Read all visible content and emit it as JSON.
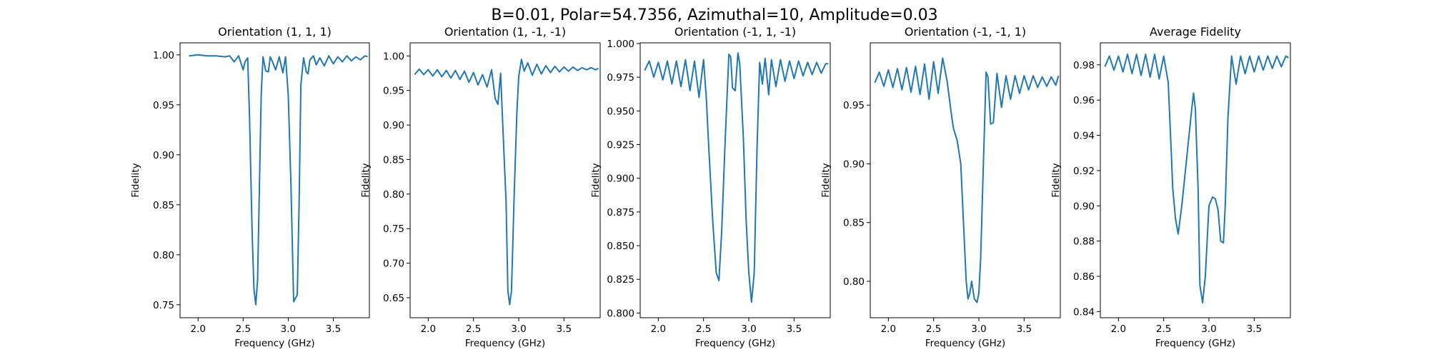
{
  "figure": {
    "title": "B=0.01, Polar=54.7356, Azimuthal=10, Amplitude=0.03"
  },
  "chart_data": [
    {
      "type": "line",
      "title": "Orientation (1, 1, 1)",
      "xlabel": "Frequency (GHz)",
      "ylabel": "Fidelity",
      "xlim": [
        1.8,
        3.9
      ],
      "ylim": [
        0.737,
        1.012
      ],
      "xticks": [
        "2.0",
        "2.5",
        "3.0",
        "3.5"
      ],
      "yticks": [
        "0.75",
        "0.80",
        "0.85",
        "0.90",
        "0.95",
        "1.00"
      ],
      "grid": false,
      "color": "#1f77b4",
      "series": [
        {
          "x": [
            1.9,
            2.0,
            2.1,
            2.2,
            2.3,
            2.35,
            2.4,
            2.45,
            2.5,
            2.52,
            2.55,
            2.57,
            2.6,
            2.62,
            2.64,
            2.66,
            2.7,
            2.72,
            2.75,
            2.78,
            2.8,
            2.83,
            2.86,
            2.9,
            2.94,
            2.97,
            3.0,
            3.03,
            3.06,
            3.1,
            3.12,
            3.14,
            3.17,
            3.2,
            3.22,
            3.24,
            3.28,
            3.31,
            3.35,
            3.4,
            3.45,
            3.5,
            3.55,
            3.6,
            3.65,
            3.7,
            3.75,
            3.8,
            3.85,
            3.88
          ],
          "y": [
            0.999,
            1.0,
            0.999,
            0.999,
            0.998,
            0.999,
            0.993,
            0.999,
            0.985,
            0.993,
            0.997,
            0.94,
            0.82,
            0.765,
            0.75,
            0.775,
            0.96,
            0.998,
            0.984,
            0.983,
            0.998,
            0.992,
            0.985,
            0.998,
            0.982,
            0.998,
            0.96,
            0.87,
            0.753,
            0.76,
            0.85,
            0.97,
            0.997,
            0.983,
            0.981,
            0.995,
            0.999,
            0.99,
            0.997,
            0.989,
            0.999,
            0.991,
            0.998,
            0.993,
            0.999,
            0.994,
            0.998,
            0.995,
            0.999,
            0.998
          ]
        }
      ]
    },
    {
      "type": "line",
      "title": "Orientation (1, -1, -1)",
      "xlabel": "Frequency (GHz)",
      "ylabel": "Fidelity",
      "xlim": [
        1.8,
        3.9
      ],
      "ylim": [
        0.621,
        1.019
      ],
      "xticks": [
        "2.0",
        "2.5",
        "3.0",
        "3.5"
      ],
      "yticks": [
        "0.65",
        "0.70",
        "0.75",
        "0.80",
        "0.85",
        "0.90",
        "0.95",
        "1.00"
      ],
      "grid": false,
      "color": "#1f77b4",
      "series": [
        {
          "x": [
            1.85,
            1.9,
            1.95,
            2.0,
            2.05,
            2.1,
            2.15,
            2.2,
            2.25,
            2.3,
            2.35,
            2.4,
            2.45,
            2.5,
            2.55,
            2.6,
            2.65,
            2.7,
            2.74,
            2.77,
            2.8,
            2.83,
            2.86,
            2.88,
            2.9,
            2.92,
            2.95,
            2.98,
            3.0,
            3.03,
            3.06,
            3.1,
            3.15,
            3.2,
            3.25,
            3.3,
            3.35,
            3.4,
            3.45,
            3.5,
            3.55,
            3.6,
            3.65,
            3.7,
            3.75,
            3.8,
            3.85,
            3.88
          ],
          "y": [
            0.973,
            0.981,
            0.973,
            0.98,
            0.971,
            0.98,
            0.97,
            0.979,
            0.968,
            0.979,
            0.966,
            0.978,
            0.962,
            0.976,
            0.958,
            0.973,
            0.955,
            0.98,
            0.938,
            0.93,
            0.975,
            0.88,
            0.79,
            0.66,
            0.64,
            0.66,
            0.8,
            0.92,
            0.97,
            0.995,
            0.978,
            0.99,
            0.972,
            0.988,
            0.974,
            0.986,
            0.976,
            0.985,
            0.977,
            0.984,
            0.978,
            0.984,
            0.979,
            0.983,
            0.98,
            0.983,
            0.98,
            0.982
          ]
        }
      ]
    },
    {
      "type": "line",
      "title": "Orientation (-1, 1, -1)",
      "xlabel": "Frequency (GHz)",
      "ylabel": "Fidelity",
      "xlim": [
        1.8,
        3.9
      ],
      "ylim": [
        0.7965,
        1.0005
      ],
      "xticks": [
        "2.0",
        "2.5",
        "3.0",
        "3.5"
      ],
      "yticks": [
        "0.800",
        "0.825",
        "0.850",
        "0.875",
        "0.900",
        "0.925",
        "0.950",
        "0.975",
        "1.000"
      ],
      "grid": false,
      "color": "#1f77b4",
      "series": [
        {
          "x": [
            1.85,
            1.9,
            1.95,
            2.0,
            2.05,
            2.1,
            2.15,
            2.2,
            2.25,
            2.3,
            2.35,
            2.4,
            2.45,
            2.5,
            2.53,
            2.56,
            2.6,
            2.64,
            2.67,
            2.7,
            2.74,
            2.78,
            2.8,
            2.82,
            2.85,
            2.88,
            2.9,
            2.94,
            2.97,
            3.0,
            3.03,
            3.06,
            3.09,
            3.12,
            3.15,
            3.18,
            3.22,
            3.25,
            3.3,
            3.35,
            3.4,
            3.45,
            3.5,
            3.55,
            3.6,
            3.65,
            3.7,
            3.75,
            3.8,
            3.85,
            3.88
          ],
          "y": [
            0.98,
            0.987,
            0.975,
            0.986,
            0.973,
            0.987,
            0.97,
            0.987,
            0.968,
            0.988,
            0.965,
            0.987,
            0.96,
            0.988,
            0.96,
            0.92,
            0.87,
            0.83,
            0.824,
            0.86,
            0.93,
            0.992,
            0.99,
            0.967,
            0.965,
            0.993,
            0.985,
            0.93,
            0.87,
            0.83,
            0.808,
            0.83,
            0.92,
            0.986,
            0.97,
            0.989,
            0.962,
            0.988,
            0.968,
            0.988,
            0.972,
            0.987,
            0.974,
            0.987,
            0.976,
            0.986,
            0.977,
            0.986,
            0.978,
            0.985,
            0.985
          ]
        }
      ]
    },
    {
      "type": "line",
      "title": "Orientation (-1, -1, 1)",
      "xlabel": "Frequency (GHz)",
      "ylabel": "Fidelity",
      "xlim": [
        1.8,
        3.9
      ],
      "ylim": [
        0.769,
        1.003
      ],
      "xticks": [
        "2.0",
        "2.5",
        "3.0",
        "3.5"
      ],
      "yticks": [
        "0.80",
        "0.85",
        "0.90",
        "0.95"
      ],
      "grid": false,
      "color": "#1f77b4",
      "series": [
        {
          "x": [
            1.85,
            1.9,
            1.95,
            2.0,
            2.05,
            2.1,
            2.15,
            2.2,
            2.25,
            2.3,
            2.35,
            2.4,
            2.45,
            2.5,
            2.55,
            2.6,
            2.65,
            2.7,
            2.72,
            2.76,
            2.8,
            2.83,
            2.86,
            2.88,
            2.9,
            2.92,
            2.95,
            2.98,
            3.0,
            3.02,
            3.05,
            3.08,
            3.1,
            3.13,
            3.16,
            3.2,
            3.25,
            3.3,
            3.35,
            3.4,
            3.45,
            3.5,
            3.55,
            3.6,
            3.65,
            3.7,
            3.75,
            3.8,
            3.85,
            3.88
          ],
          "y": [
            0.969,
            0.978,
            0.966,
            0.98,
            0.965,
            0.981,
            0.963,
            0.982,
            0.961,
            0.983,
            0.959,
            0.985,
            0.955,
            0.987,
            0.96,
            0.99,
            0.97,
            0.94,
            0.93,
            0.92,
            0.9,
            0.85,
            0.8,
            0.785,
            0.79,
            0.8,
            0.785,
            0.782,
            0.79,
            0.82,
            0.9,
            0.978,
            0.974,
            0.934,
            0.935,
            0.977,
            0.948,
            0.975,
            0.955,
            0.975,
            0.96,
            0.975,
            0.963,
            0.975,
            0.965,
            0.974,
            0.966,
            0.974,
            0.967,
            0.975
          ]
        }
      ]
    },
    {
      "type": "line",
      "title": "Average Fidelity",
      "xlabel": "Frequency (GHz)",
      "ylabel": "Fidelity",
      "xlim": [
        1.8,
        3.9
      ],
      "ylim": [
        0.8365,
        0.9925
      ],
      "xticks": [
        "2.0",
        "2.5",
        "3.0",
        "3.5"
      ],
      "yticks": [
        "0.84",
        "0.86",
        "0.88",
        "0.90",
        "0.92",
        "0.94",
        "0.96",
        "0.98"
      ],
      "grid": false,
      "color": "#1f77b4",
      "series": [
        {
          "x": [
            1.85,
            1.9,
            1.95,
            2.0,
            2.05,
            2.1,
            2.15,
            2.2,
            2.25,
            2.3,
            2.35,
            2.4,
            2.45,
            2.5,
            2.55,
            2.58,
            2.6,
            2.63,
            2.66,
            2.7,
            2.74,
            2.78,
            2.81,
            2.83,
            2.85,
            2.88,
            2.9,
            2.93,
            2.96,
            3.0,
            3.04,
            3.07,
            3.1,
            3.13,
            3.16,
            3.18,
            3.21,
            3.25,
            3.3,
            3.35,
            3.4,
            3.45,
            3.5,
            3.55,
            3.6,
            3.65,
            3.7,
            3.75,
            3.8,
            3.85,
            3.88
          ],
          "y": [
            0.979,
            0.985,
            0.977,
            0.985,
            0.976,
            0.986,
            0.975,
            0.986,
            0.974,
            0.986,
            0.973,
            0.986,
            0.972,
            0.985,
            0.97,
            0.935,
            0.91,
            0.893,
            0.884,
            0.9,
            0.92,
            0.94,
            0.955,
            0.964,
            0.955,
            0.91,
            0.855,
            0.845,
            0.86,
            0.9,
            0.905,
            0.904,
            0.898,
            0.88,
            0.879,
            0.9,
            0.95,
            0.985,
            0.969,
            0.985,
            0.975,
            0.985,
            0.976,
            0.985,
            0.977,
            0.985,
            0.978,
            0.985,
            0.979,
            0.985,
            0.984
          ]
        }
      ]
    }
  ]
}
